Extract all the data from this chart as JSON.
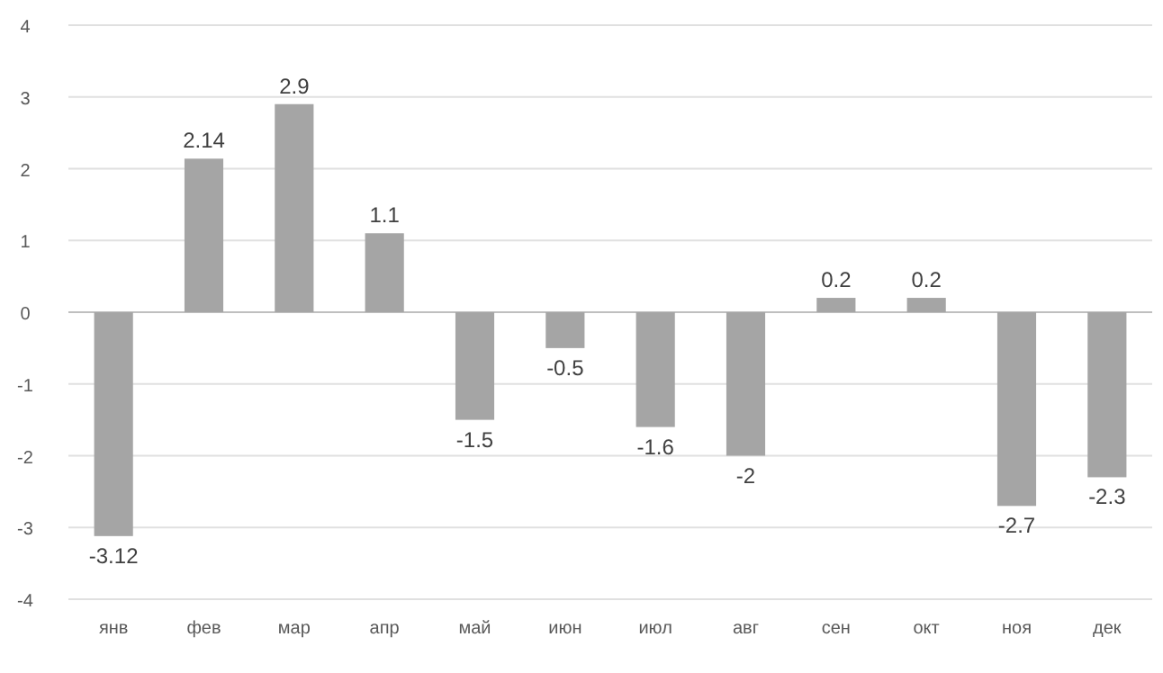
{
  "chart_data": {
    "type": "bar",
    "categories": [
      "янв",
      "фев",
      "мар",
      "апр",
      "май",
      "июн",
      "июл",
      "авг",
      "сен",
      "окт",
      "ноя",
      "дек"
    ],
    "values": [
      -3.12,
      2.14,
      2.9,
      1.1,
      -1.5,
      -0.5,
      -1.6,
      -2,
      0.2,
      0.2,
      -2.7,
      -2.3
    ],
    "color": "#a5a5a5",
    "ylim": [
      -4,
      4
    ],
    "yticks": [
      -4,
      -3,
      -2,
      -1,
      0,
      1,
      2,
      3,
      4
    ],
    "grid": "y",
    "data_labels": true
  }
}
